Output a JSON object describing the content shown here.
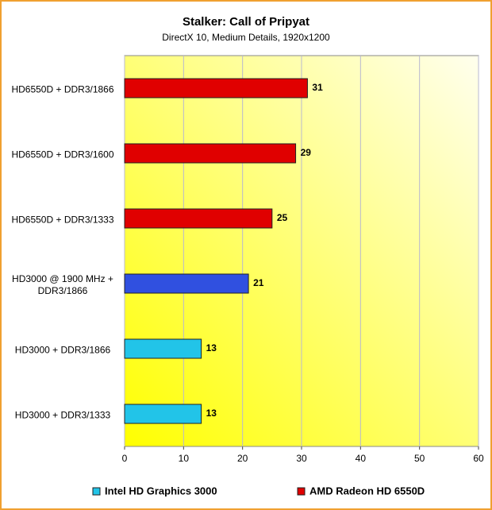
{
  "chart_data": {
    "type": "bar",
    "orientation": "horizontal",
    "title": "Stalker: Call of Pripyat",
    "subtitle": "DirectX 10, Medium Details, 1920x1200",
    "categories": [
      "HD6550D + DDR3/1866",
      "HD6550D + DDR3/1600",
      "HD6550D + DDR3/1333",
      "HD3000 @ 1900 MHz + DDR3/1866",
      "HD3000 + DDR3/1866",
      "HD3000 + DDR3/1333"
    ],
    "values": [
      31,
      29,
      25,
      21,
      13,
      13
    ],
    "colors": [
      "#e00000",
      "#e00000",
      "#e00000",
      "#3050e0",
      "#22c4e8",
      "#22c4e8"
    ],
    "xlim": [
      0,
      60
    ],
    "xticks": [
      0,
      10,
      20,
      30,
      40,
      50,
      60
    ],
    "grid": true,
    "legend": [
      {
        "name": "Intel HD Graphics 3000",
        "color": "#22c4e8"
      },
      {
        "name": "AMD Radeon HD 6550D",
        "color": "#e00000"
      }
    ]
  }
}
